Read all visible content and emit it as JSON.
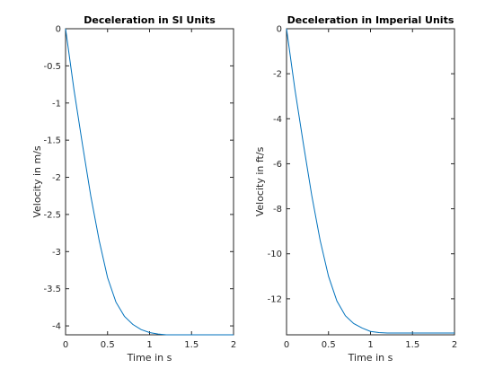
{
  "chart_data": [
    {
      "type": "line",
      "title": "Deceleration in SI Units",
      "xlabel": "Time in s",
      "ylabel": "Velocity in m/s",
      "xlim": [
        0,
        2
      ],
      "ylim": [
        -4.12,
        0
      ],
      "xticks": [
        0,
        0.5,
        1,
        1.5,
        2
      ],
      "xtick_labels": [
        "0",
        "0.5",
        "1",
        "1.5",
        "2"
      ],
      "yticks": [
        0,
        -0.5,
        -1,
        -1.5,
        -2,
        -2.5,
        -3,
        -3.5,
        -4
      ],
      "ytick_labels": [
        "0",
        "-0.5",
        "-1",
        "-1.5",
        "-2",
        "-2.5",
        "-3",
        "-3.5",
        "-4"
      ],
      "grid": false,
      "series": [
        {
          "color": "#0072bd",
          "x": [
            0,
            0.1,
            0.2,
            0.3,
            0.4,
            0.5,
            0.6,
            0.7,
            0.8,
            0.9,
            1.0,
            1.1,
            1.2,
            1.3,
            1.4,
            1.5,
            1.6,
            1.7,
            1.8,
            1.9,
            2.0
          ],
          "y": [
            0,
            -0.82,
            -1.55,
            -2.25,
            -2.85,
            -3.35,
            -3.68,
            -3.87,
            -3.98,
            -4.05,
            -4.09,
            -4.11,
            -4.12,
            -4.12,
            -4.12,
            -4.12,
            -4.12,
            -4.12,
            -4.12,
            -4.12,
            -4.12
          ]
        }
      ]
    },
    {
      "type": "line",
      "title": "Deceleration in Imperial Units",
      "xlabel": "Time in s",
      "ylabel": "Velocity in ft/s",
      "xlim": [
        0,
        2
      ],
      "ylim": [
        -13.6,
        0
      ],
      "xticks": [
        0,
        0.5,
        1,
        1.5,
        2
      ],
      "xtick_labels": [
        "0",
        "0.5",
        "1",
        "1.5",
        "2"
      ],
      "yticks": [
        0,
        -2,
        -4,
        -6,
        -8,
        -10,
        -12
      ],
      "ytick_labels": [
        "0",
        "-2",
        "-4",
        "-6",
        "-8",
        "-10",
        "-12"
      ],
      "grid": false,
      "series": [
        {
          "color": "#0072bd",
          "x": [
            0,
            0.1,
            0.2,
            0.3,
            0.4,
            0.5,
            0.6,
            0.7,
            0.8,
            0.9,
            1.0,
            1.1,
            1.2,
            1.3,
            1.4,
            1.5,
            1.6,
            1.7,
            1.8,
            1.9,
            2.0
          ],
          "y": [
            0,
            -2.7,
            -5.1,
            -7.4,
            -9.4,
            -11.0,
            -12.1,
            -12.75,
            -13.1,
            -13.3,
            -13.45,
            -13.5,
            -13.52,
            -13.52,
            -13.52,
            -13.52,
            -13.52,
            -13.52,
            -13.52,
            -13.52,
            -13.52
          ]
        }
      ]
    }
  ]
}
